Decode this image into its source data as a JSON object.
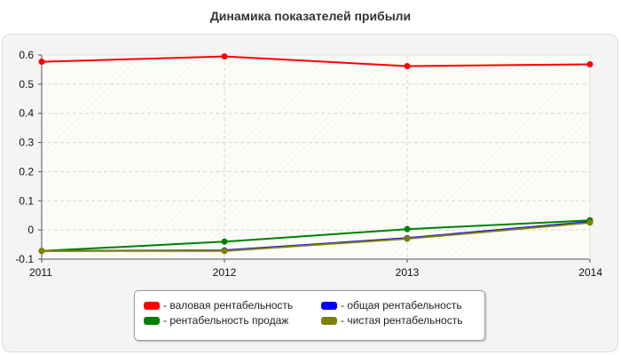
{
  "title": "Динамика показателей прибыли",
  "chart_data": {
    "type": "line",
    "x": [
      "2011",
      "2012",
      "2013",
      "2014"
    ],
    "ylim": [
      -0.1,
      0.6
    ],
    "yticks": [
      "-0.1",
      "0",
      "0.1",
      "0.2",
      "0.3",
      "0.4",
      "0.5",
      "0.6"
    ],
    "grid": true,
    "legend_position": "bottom",
    "series": [
      {
        "name": "- валовая рентабельность",
        "color": "#ff0000",
        "values": [
          0.577,
          0.595,
          0.562,
          0.568
        ]
      },
      {
        "name": "- рентабельность продаж",
        "color": "#008000",
        "values": [
          -0.072,
          -0.04,
          0.003,
          0.033
        ]
      },
      {
        "name": "- общая рентабельность",
        "color": "#0000ff",
        "values": [
          -0.072,
          -0.07,
          -0.028,
          0.028
        ]
      },
      {
        "name": "- чистая рентабельность",
        "color": "#808000",
        "values": [
          -0.072,
          -0.072,
          -0.03,
          0.025
        ]
      }
    ]
  }
}
